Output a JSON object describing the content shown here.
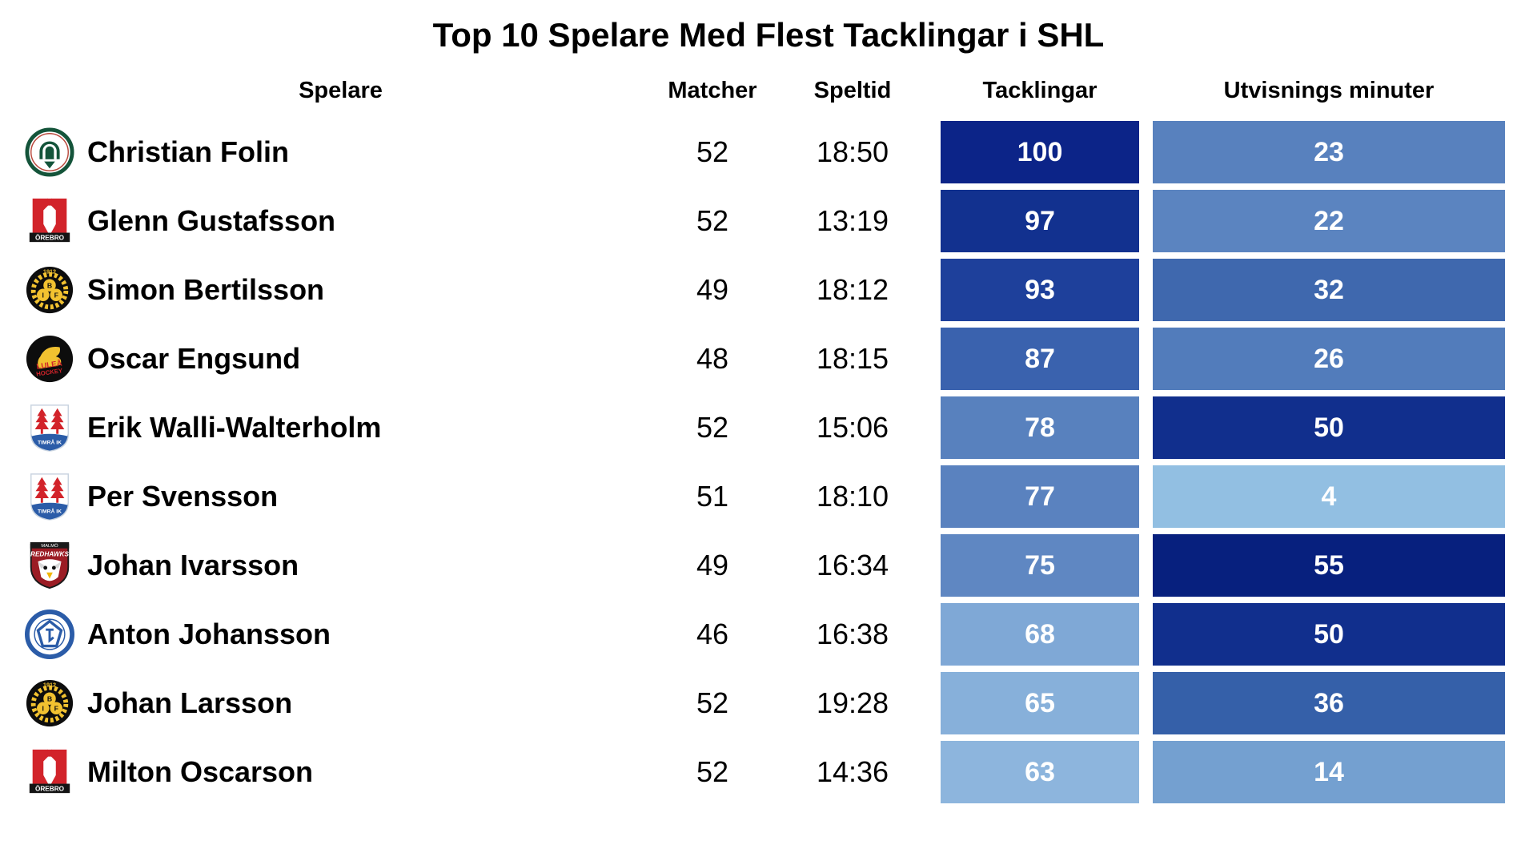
{
  "title": "Top 10 Spelare Med Flest Tacklingar i SHL",
  "columns": [
    "Spelare",
    "Matcher",
    "Speltid",
    "Tacklingar",
    "Utvisnings minuter"
  ],
  "rows": [
    {
      "player": "Christian Folin",
      "team": "frolunda",
      "matcher": 52,
      "speltid": "18:50",
      "tacklingar": 100,
      "tack_color": "#0C2488",
      "utvisningar": 23,
      "utv_color": "#5881BE"
    },
    {
      "player": "Glenn Gustafsson",
      "team": "orebro",
      "matcher": 52,
      "speltid": "13:19",
      "tacklingar": 97,
      "tack_color": "#12318F",
      "utvisningar": 22,
      "utv_color": "#5B84C0"
    },
    {
      "player": "Simon Bertilsson",
      "team": "brynas",
      "matcher": 49,
      "speltid": "18:12",
      "tacklingar": 93,
      "tack_color": "#1E409B",
      "utvisningar": 32,
      "utv_color": "#3F68AE"
    },
    {
      "player": "Oscar Engsund",
      "team": "lulea",
      "matcher": 48,
      "speltid": "18:15",
      "tacklingar": 87,
      "tack_color": "#3A62AE",
      "utvisningar": 26,
      "utv_color": "#527CBB"
    },
    {
      "player": "Erik Walli-Walterholm",
      "team": "timra",
      "matcher": 52,
      "speltid": "15:06",
      "tacklingar": 78,
      "tack_color": "#5881BE",
      "utvisningar": 50,
      "utv_color": "#112F8D"
    },
    {
      "player": "Per Svensson",
      "team": "timra",
      "matcher": 51,
      "speltid": "18:10",
      "tacklingar": 77,
      "tack_color": "#5A82BF",
      "utvisningar": 4,
      "utv_color": "#92BFE2"
    },
    {
      "player": "Johan Ivarsson",
      "team": "malmo",
      "matcher": 49,
      "speltid": "16:34",
      "tacklingar": 75,
      "tack_color": "#5F87C2",
      "utvisningar": 55,
      "utv_color": "#07207E"
    },
    {
      "player": "Anton Johansson",
      "team": "leksand",
      "matcher": 46,
      "speltid": "16:38",
      "tacklingar": 68,
      "tack_color": "#7FA8D6",
      "utvisningar": 50,
      "utv_color": "#112F8D"
    },
    {
      "player": "Johan Larsson",
      "team": "brynas",
      "matcher": 52,
      "speltid": "19:28",
      "tacklingar": 65,
      "tack_color": "#87B0DA",
      "utvisningar": 36,
      "utv_color": "#3560A9"
    },
    {
      "player": "Milton Oscarson",
      "team": "orebro",
      "matcher": 52,
      "speltid": "14:36",
      "tacklingar": 63,
      "tack_color": "#8DB5DD",
      "utvisningar": 14,
      "utv_color": "#74A0D0"
    }
  ],
  "chart_data": {
    "type": "table",
    "title": "Top 10 Spelare Med Flest Tacklingar i SHL",
    "columns": [
      "Spelare",
      "Matcher",
      "Speltid",
      "Tacklingar",
      "Utvisnings minuter"
    ],
    "rows": [
      [
        "Christian Folin",
        52,
        "18:50",
        100,
        23
      ],
      [
        "Glenn Gustafsson",
        52,
        "13:19",
        97,
        22
      ],
      [
        "Simon Bertilsson",
        49,
        "18:12",
        93,
        32
      ],
      [
        "Oscar Engsund",
        48,
        "18:15",
        87,
        26
      ],
      [
        "Erik Walli-Walterholm",
        52,
        "15:06",
        78,
        50
      ],
      [
        "Per Svensson",
        51,
        "18:10",
        77,
        4
      ],
      [
        "Johan Ivarsson",
        49,
        "16:34",
        75,
        55
      ],
      [
        "Anton Johansson",
        46,
        "16:38",
        68,
        50
      ],
      [
        "Johan Larsson",
        52,
        "19:28",
        65,
        36
      ],
      [
        "Milton Oscarson",
        52,
        "14:36",
        63,
        14
      ]
    ],
    "heatmap_columns": [
      "Tacklingar",
      "Utvisnings minuter"
    ],
    "color_scale": {
      "low": "#92BFE2",
      "high": "#07207E",
      "note": "darker blue = higher value, scaled per column"
    }
  }
}
